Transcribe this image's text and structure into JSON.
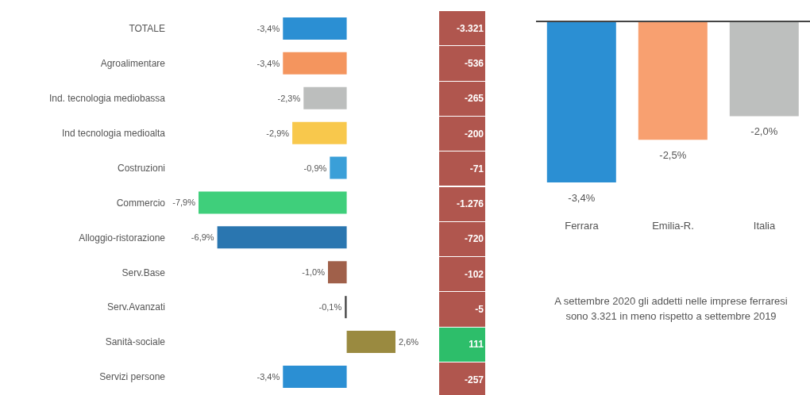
{
  "chart_data": [
    {
      "type": "bar",
      "orientation": "horizontal",
      "categories": [
        "TOTALE",
        "Agroalimentare",
        "Ind. tecnologia mediobassa",
        "Ind tecnologia medioalta",
        "Costruzioni",
        "Commercio",
        "Alloggio-ristorazione",
        "Serv.Base",
        "Serv.Avanzati",
        "Sanità-sociale",
        "Servizi persone"
      ],
      "values": [
        -3.4,
        -3.4,
        -2.3,
        -2.9,
        -0.9,
        -7.9,
        -6.9,
        -1.0,
        -0.1,
        2.6,
        -3.4
      ],
      "colors": [
        "#2b8fd3",
        "#f4955e",
        "#bcbebd",
        "#f8c84c",
        "#3a9fd8",
        "#3fcf7b",
        "#2a76b0",
        "#a0604a",
        "#444444",
        "#9a8a40",
        "#2b8fd3"
      ],
      "value_labels": [
        "-3,4%",
        "-3,4%",
        "-2,3%",
        "-2,9%",
        "-0,9%",
        "-7,9%",
        "-6,9%",
        "-1,0%",
        "-0,1%",
        "2,6%",
        "-3,4%"
      ],
      "tick_labels": "y"
    },
    {
      "type": "other",
      "value_labels": [
        "-3.321",
        "-536",
        "-265",
        "-200",
        "-71",
        "-1.276",
        "-720",
        "-102",
        "-5",
        "111",
        "-257"
      ],
      "colors": [
        "#b0564e",
        "#b0564e",
        "#b0564e",
        "#b0564e",
        "#b0564e",
        "#b0564e",
        "#b0564e",
        "#b0564e",
        "#b0564e",
        "#2dbe6a",
        "#b0564e"
      ]
    },
    {
      "type": "bar",
      "categories": [
        "Ferrara",
        "Emilia-R.",
        "Italia"
      ],
      "values": [
        -3.4,
        -2.5,
        -2.0
      ],
      "colors": [
        "#2b8fd3",
        "#f8a070",
        "#bdbfbe"
      ],
      "value_labels": [
        "-3,4%",
        "-2,5%",
        "-2,0%"
      ],
      "tick_labels": "x",
      "annotations": [
        "A settembre 2020 gli addetti nelle imprese ferraresi sono 3.321 in meno rispetto a settembre 2019"
      ]
    }
  ]
}
